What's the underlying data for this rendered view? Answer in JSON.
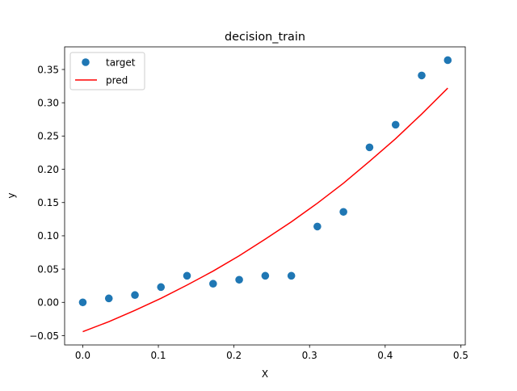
{
  "chart_data": {
    "type": "scatter",
    "title": "decision_train",
    "xlabel": "X",
    "ylabel": "y",
    "xlim": [
      -0.024,
      0.506
    ],
    "ylim": [
      -0.064,
      0.384
    ],
    "xticks": [
      0.0,
      0.1,
      0.2,
      0.3,
      0.4,
      0.5
    ],
    "xtick_labels": [
      "0.0",
      "0.1",
      "0.2",
      "0.3",
      "0.4",
      "0.5"
    ],
    "yticks": [
      -0.05,
      0.0,
      0.05,
      0.1,
      0.15,
      0.2,
      0.25,
      0.3,
      0.35
    ],
    "ytick_labels": [
      "−0.05",
      "0.00",
      "0.05",
      "0.10",
      "0.15",
      "0.20",
      "0.25",
      "0.30",
      "0.35"
    ],
    "grid": false,
    "legend_position": "top-left",
    "series": [
      {
        "name": "target",
        "kind": "scatter",
        "color": "#1f77b4",
        "x": [
          0.0,
          0.0345,
          0.069,
          0.1034,
          0.1379,
          0.1724,
          0.2069,
          0.2414,
          0.2759,
          0.3103,
          0.3448,
          0.3793,
          0.4138,
          0.4483,
          0.4828
        ],
        "y": [
          0.0,
          0.006,
          0.011,
          0.023,
          0.04,
          0.028,
          0.034,
          0.04,
          0.04,
          0.114,
          0.136,
          0.233,
          0.267,
          0.341,
          0.364
        ]
      },
      {
        "name": "pred",
        "kind": "line",
        "color": "#ff0000",
        "x": [
          0.0,
          0.0345,
          0.069,
          0.1034,
          0.1379,
          0.1724,
          0.2069,
          0.2414,
          0.2759,
          0.3103,
          0.3448,
          0.3793,
          0.4138,
          0.4483,
          0.4828
        ],
        "y": [
          -0.044,
          -0.029,
          -0.012,
          0.006,
          0.026,
          0.047,
          0.07,
          0.095,
          0.121,
          0.149,
          0.179,
          0.212,
          0.246,
          0.283,
          0.322
        ]
      }
    ]
  }
}
